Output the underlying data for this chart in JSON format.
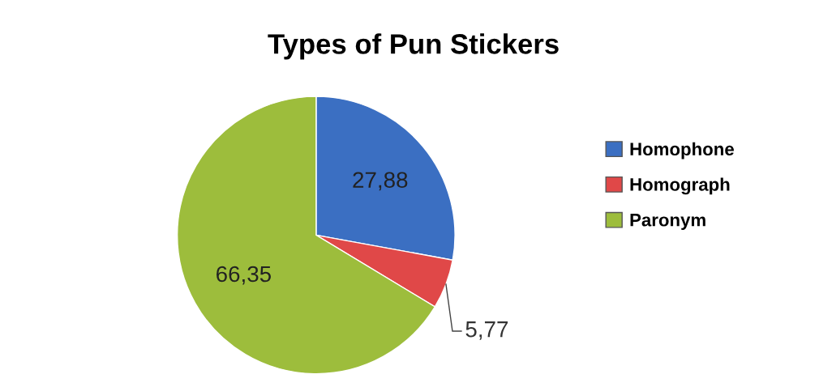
{
  "chart_data": {
    "type": "pie",
    "title": "Types of Pun Stickers",
    "categories": [
      "Homophone",
      "Homograph",
      "Paronym"
    ],
    "values": [
      27.88,
      5.77,
      66.35
    ],
    "value_labels": [
      "27,88",
      "5,77",
      "66,35"
    ],
    "colors": [
      "#3b6fc2",
      "#e04848",
      "#9dbd3c"
    ],
    "legend": "right"
  }
}
